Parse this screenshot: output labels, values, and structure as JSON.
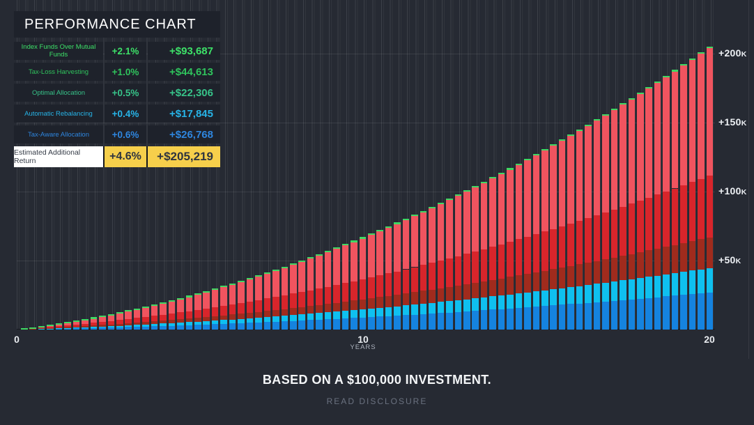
{
  "legend": {
    "title": "PERFORMANCE CHART",
    "rows": [
      {
        "label": "Index Funds Over Mutual Funds",
        "pct": "+2.1%",
        "amount": "+$93,687",
        "color": "#3de168"
      },
      {
        "label": "Tax-Loss Harvesting",
        "pct": "+1.0%",
        "amount": "+$44,613",
        "color": "#2fc35c"
      },
      {
        "label": "Optimal Allocation",
        "pct": "+0.5%",
        "amount": "+$22,306",
        "color": "#37c389"
      },
      {
        "label": "Automatic Rebalancing",
        "pct": "+0.4%",
        "amount": "+$17,845",
        "color": "#27b4e8"
      },
      {
        "label": "Tax-Aware Allocation",
        "pct": "+0.6%",
        "amount": "+$26,768",
        "color": "#2e86df"
      }
    ],
    "total_row": {
      "label": "Estimated Additional Return",
      "pct": "+4.6%",
      "amount": "+$205,219",
      "label_bg": "#ffffff",
      "value_bg": "#f6cf4b",
      "text_color": "#2e343f"
    }
  },
  "axes": {
    "x_ticks": [
      {
        "label": "0",
        "t": 0
      },
      {
        "label": "10",
        "t": 10
      },
      {
        "label": "20",
        "t": 20
      }
    ],
    "x_axis_label": "YEARS",
    "y_ticks": [
      {
        "label": "+50",
        "suffix": "K",
        "value": 50
      },
      {
        "label": "+100",
        "suffix": "K",
        "value": 100
      },
      {
        "label": "+150",
        "suffix": "K",
        "value": 150
      },
      {
        "label": "+200",
        "suffix": "K",
        "value": 200
      }
    ]
  },
  "chart_data": {
    "type": "bar",
    "stacked": true,
    "title": "PERFORMANCE CHART",
    "xlabel": "YEARS",
    "x_range_years": [
      0,
      20
    ],
    "x_step_years": 0.25,
    "ylim_usd_thousands": [
      0,
      215
    ],
    "y_tick_values_usd_thousands": [
      50,
      100,
      150,
      200
    ],
    "total_usd": 205219,
    "base_investment_usd": 100000,
    "series": [
      {
        "name": "Tax-Aware Allocation",
        "color": "#1583df",
        "amount_usd": 26768,
        "pct": "+0.6%"
      },
      {
        "name": "Automatic Rebalancing",
        "color": "#0fc0ef",
        "amount_usd": 17845,
        "pct": "+0.4%"
      },
      {
        "name": "Optimal Allocation",
        "color": "#a02b1d",
        "amount_usd": 22306,
        "pct": "+0.5%"
      },
      {
        "name": "Tax-Loss Harvesting",
        "color": "#d8252b",
        "amount_usd": 44613,
        "pct": "+1.0%"
      },
      {
        "name": "Index Funds Over Mutual Funds",
        "color": "#f0545f",
        "amount_usd": 93687,
        "pct": "+2.1%"
      }
    ],
    "cap_color": "#3fd863",
    "separator_color": "#eec92f",
    "separator_after_series": "Automatic Rebalancing",
    "totals_usd_thousands": [
      0.8,
      1.7,
      2.6,
      3.5,
      4.5,
      5.5,
      6.6,
      7.7,
      8.9,
      10.1,
      11.3,
      12.6,
      14.0,
      15.4,
      16.8,
      18.3,
      19.8,
      21.3,
      22.9,
      24.6,
      26.3,
      28.0,
      29.8,
      31.7,
      33.5,
      35.5,
      37.4,
      39.4,
      41.5,
      43.6,
      45.7,
      47.9,
      50.1,
      52.4,
      54.7,
      57.1,
      59.5,
      62.0,
      64.5,
      67.0,
      69.6,
      72.2,
      74.9,
      77.6,
      80.4,
      83.2,
      86.0,
      88.9,
      91.9,
      94.9,
      97.9,
      101.0,
      104.1,
      107.3,
      110.5,
      113.7,
      117.0,
      120.4,
      123.8,
      127.2,
      130.7,
      134.2,
      137.8,
      141.4,
      145.0,
      148.7,
      152.5,
      156.3,
      160.1,
      164.0,
      167.9,
      171.9,
      175.9,
      179.9,
      184.0,
      188.2,
      192.4,
      196.6,
      200.9,
      205.2
    ]
  },
  "footer": {
    "headline": "BASED ON A $100,000 INVESTMENT.",
    "disclosure": "READ DISCLOSURE"
  }
}
